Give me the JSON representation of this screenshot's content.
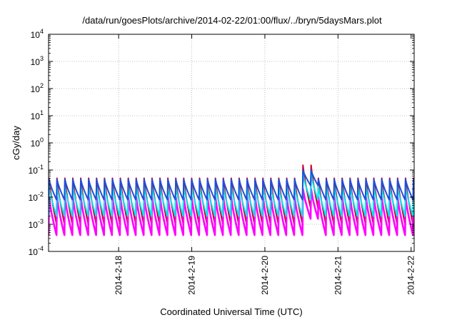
{
  "chart_data": {
    "type": "line",
    "title": "/data/run/goesPlots/archive/2014-02-22/01:00/flux/../bryn/5daysMars.plot",
    "xlabel": "Coordinated Universal Time (UTC)",
    "ylabel": "cGy/day",
    "yscale": "log",
    "ylim": [
      0.0001,
      10000
    ],
    "xlim": [
      "2014-02-17T01:00",
      "2014-02-22T01:00"
    ],
    "grid": true,
    "legend": "none",
    "x_ticks": [
      {
        "x": "2014-02-18T00:00",
        "label": "2014-2-18"
      },
      {
        "x": "2014-02-19T00:00",
        "label": "2014-2-19"
      },
      {
        "x": "2014-02-20T00:00",
        "label": "2014-2-20"
      },
      {
        "x": "2014-02-21T00:00",
        "label": "2014-2-21"
      },
      {
        "x": "2014-02-22T00:00",
        "label": "2014-2-22"
      }
    ],
    "y_ticks": [
      {
        "value": 0.0001,
        "base": "10",
        "exp": "-4"
      },
      {
        "value": 0.001,
        "base": "10",
        "exp": "-3"
      },
      {
        "value": 0.01,
        "base": "10",
        "exp": "-2"
      },
      {
        "value": 0.1,
        "base": "10",
        "exp": "-1"
      },
      {
        "value": 1,
        "base": "10",
        "exp": "0"
      },
      {
        "value": 10,
        "base": "10",
        "exp": "1"
      },
      {
        "value": 100,
        "base": "10",
        "exp": "2"
      },
      {
        "value": 1000,
        "base": "10",
        "exp": "3"
      },
      {
        "value": 10000,
        "base": "10",
        "exp": "4"
      }
    ],
    "pattern": {
      "cycle_hours": 2.6,
      "first_peak": "2014-02-17T01:10",
      "event_peaks": [
        "2014-02-20T12:30",
        "2014-02-20T15:10"
      ]
    },
    "series": [
      {
        "color": "#d0002a",
        "peak": 0.05,
        "trough": 0.001,
        "event_peak": 0.15
      },
      {
        "color": "#ff00ff",
        "peak": 0.01,
        "trough": 0.0004,
        "event_peak": 0.02
      },
      {
        "color": "#00e5ee",
        "peak": 0.025,
        "trough": 0.002,
        "event_peak": 0.07
      },
      {
        "color": "#1e4fd8",
        "peak": 0.045,
        "trough": 0.008,
        "event_peak": 0.1
      }
    ]
  }
}
